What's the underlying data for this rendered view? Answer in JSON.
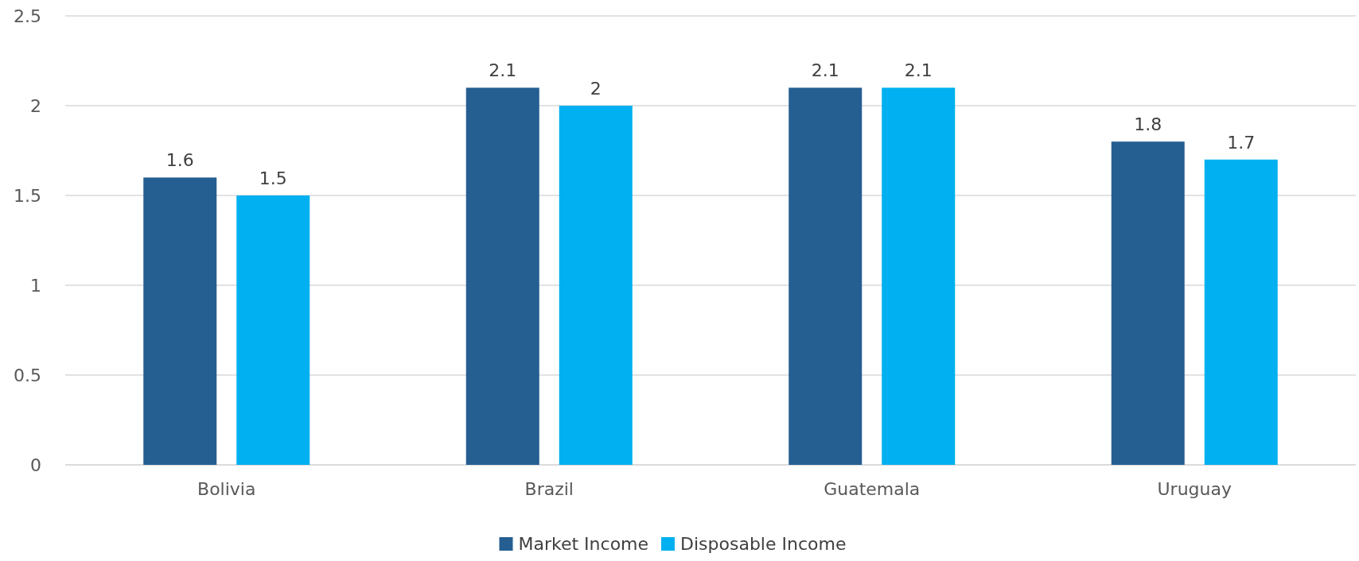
{
  "chart_data": {
    "type": "bar",
    "categories": [
      "Bolivia",
      "Brazil",
      "Guatemala",
      "Uruguay"
    ],
    "series": [
      {
        "name": "Market Income",
        "color": "#255e91",
        "values": [
          1.6,
          2.1,
          2.1,
          1.8
        ]
      },
      {
        "name": "Disposable Income",
        "color": "#00b0f0",
        "values": [
          1.5,
          2,
          2.1,
          1.7
        ]
      }
    ],
    "ylim": [
      0,
      2.5
    ],
    "yticks": [
      0,
      0.5,
      1,
      1.5,
      2,
      2.5
    ],
    "grid": "y",
    "legend": "bottom",
    "data_labels": true
  }
}
